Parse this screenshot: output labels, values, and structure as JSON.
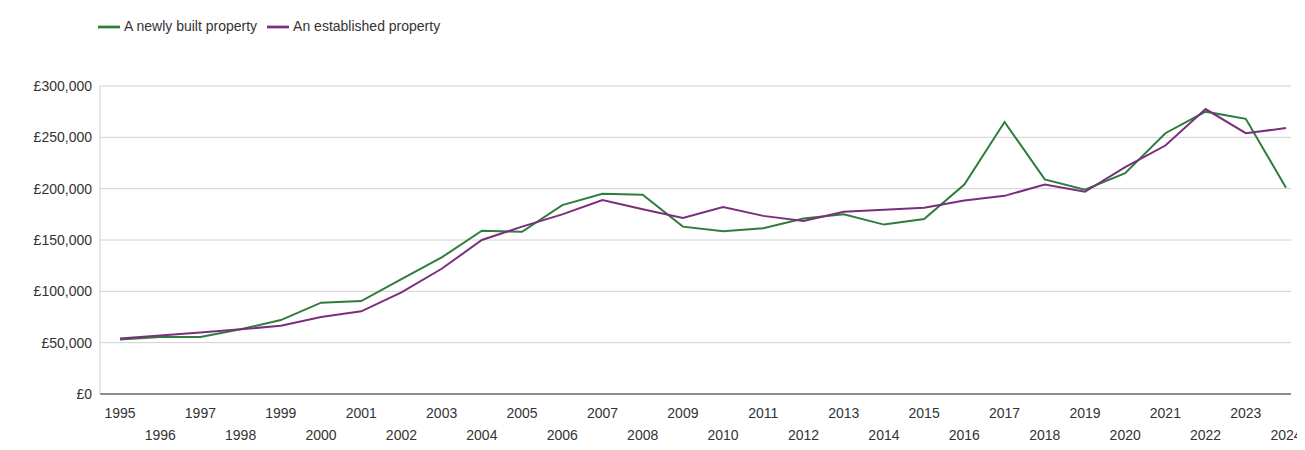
{
  "chart_data": {
    "type": "line",
    "categories": [
      "1995",
      "1996",
      "1997",
      "1998",
      "1999",
      "2000",
      "2001",
      "2002",
      "2003",
      "2004",
      "2005",
      "2006",
      "2007",
      "2008",
      "2009",
      "2010",
      "2011",
      "2012",
      "2013",
      "2014",
      "2015",
      "2016",
      "2017",
      "2018",
      "2019",
      "2020",
      "2021",
      "2022",
      "2023",
      "2024"
    ],
    "series": [
      {
        "name": "A newly built property",
        "color": "#2e7d3c",
        "values": [
          53000,
          55500,
          55500,
          63000,
          72000,
          89000,
          90500,
          112000,
          133000,
          159000,
          158000,
          184000,
          195000,
          194000,
          163000,
          158500,
          161500,
          171000,
          175000,
          165000,
          170500,
          204000,
          265000,
          209000,
          199000,
          215000,
          254000,
          275000,
          268000,
          201000
        ]
      },
      {
        "name": "An established property",
        "color": "#7b2d7e",
        "values": [
          54000,
          57000,
          60000,
          63000,
          66500,
          75000,
          80500,
          99000,
          122000,
          150000,
          163000,
          175000,
          189000,
          180000,
          171500,
          182000,
          173500,
          168500,
          177500,
          179500,
          181500,
          188500,
          193000,
          204000,
          197000,
          221000,
          242000,
          277500,
          254000,
          259000
        ]
      }
    ],
    "ylim": [
      0,
      300000
    ],
    "yticks": [
      {
        "value": 0,
        "label": "£0"
      },
      {
        "value": 50000,
        "label": "£50,000"
      },
      {
        "value": 100000,
        "label": "£100,000"
      },
      {
        "value": 150000,
        "label": "£150,000"
      },
      {
        "value": 200000,
        "label": "£200,000"
      },
      {
        "value": 250000,
        "label": "£250,000"
      },
      {
        "value": 300000,
        "label": "£300,000"
      }
    ],
    "grid": true,
    "legend": "top-left"
  }
}
